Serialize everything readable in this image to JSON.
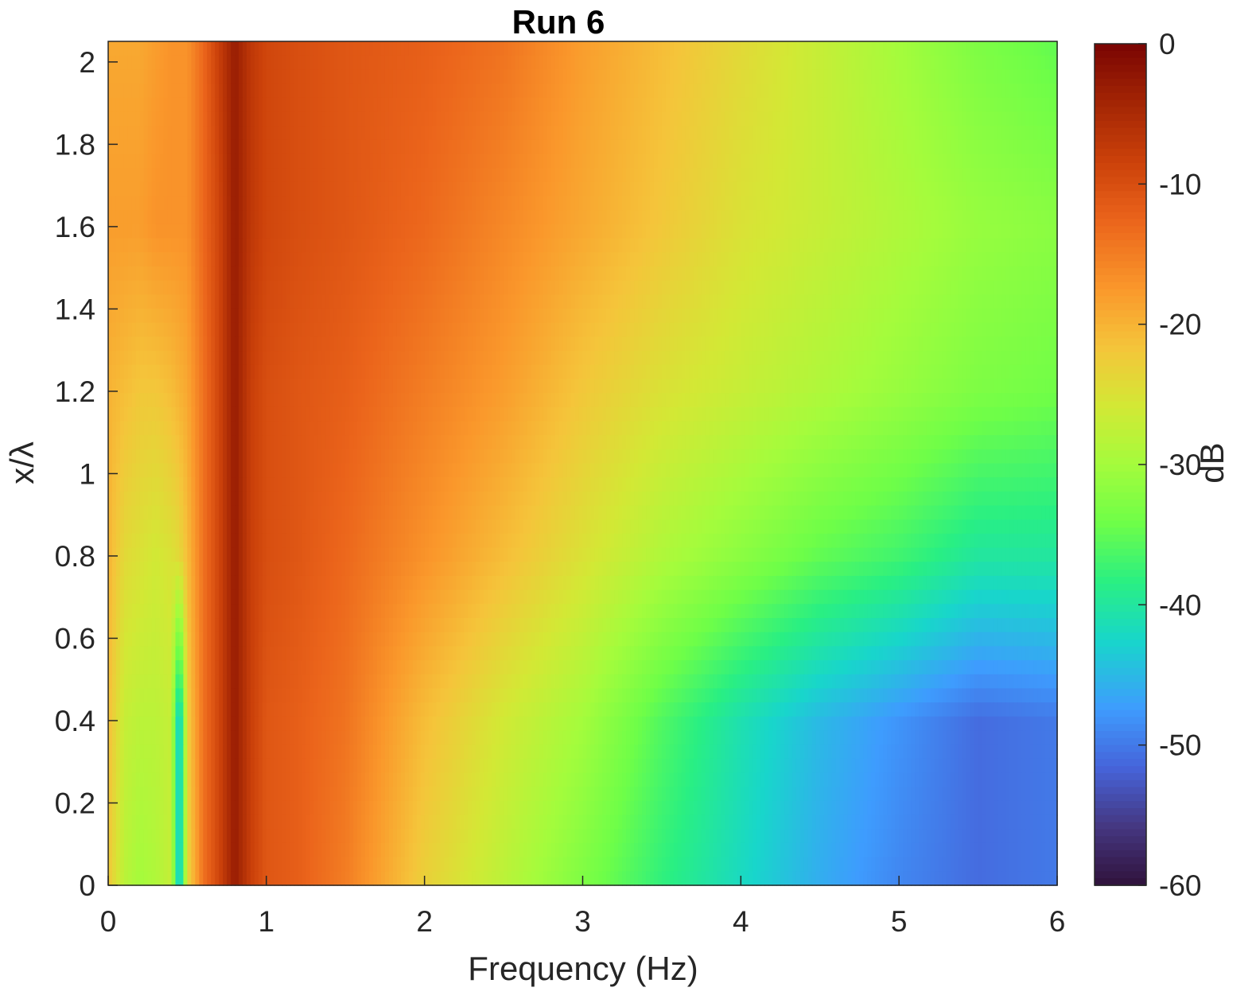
{
  "chart_data": {
    "type": "heatmap",
    "title": "Run 6",
    "xlabel": "Frequency (Hz)",
    "ylabel": "x/λ",
    "colorbar_label": "dB",
    "xlim": [
      0,
      6
    ],
    "ylim": [
      0,
      2.05
    ],
    "clim": [
      -60,
      0
    ],
    "x_ticks": [
      0,
      1,
      2,
      3,
      4,
      5,
      6
    ],
    "y_ticks": [
      0,
      0.2,
      0.4,
      0.6,
      0.8,
      1,
      1.2,
      1.4,
      1.6,
      1.8,
      2
    ],
    "y_tick_labels": [
      "0",
      "0.2",
      "0.4",
      "0.6",
      "0.8",
      "1",
      "1.2",
      "1.4",
      "1.6",
      "1.8",
      "2"
    ],
    "colorbar_ticks": [
      0,
      -10,
      -20,
      -30,
      -40,
      -50,
      -60
    ],
    "colormap": "turbo",
    "grid": false,
    "x": [
      0.0,
      0.1,
      0.2,
      0.3,
      0.4,
      0.45,
      0.5,
      0.6,
      0.7,
      0.8,
      0.9,
      1.0,
      1.2,
      1.5,
      2.0,
      2.5,
      3.0,
      3.5,
      4.0,
      4.5,
      5.0,
      5.5,
      6.0
    ],
    "y": [
      0.0,
      0.4,
      0.8,
      1.2,
      1.6,
      2.05
    ],
    "z": [
      [
        -22,
        -28,
        -30,
        -29,
        -27,
        -46,
        -24,
        -14,
        -9,
        -3,
        -8,
        -11,
        -12,
        -15,
        -23,
        -28,
        -33,
        -38,
        -42,
        -46,
        -49,
        -51,
        -50
      ],
      [
        -21,
        -27,
        -28,
        -28,
        -27,
        -46,
        -23,
        -14,
        -9,
        -3,
        -8,
        -11,
        -12,
        -14,
        -21,
        -26,
        -30,
        -36,
        -41,
        -45,
        -48,
        -51,
        -50
      ],
      [
        -20,
        -24,
        -25,
        -26,
        -25,
        -24,
        -21,
        -14,
        -9,
        -3,
        -8,
        -10,
        -11,
        -13,
        -17,
        -21,
        -25,
        -29,
        -32,
        -35,
        -37,
        -40,
        -40
      ],
      [
        -20,
        -21,
        -22,
        -22,
        -21,
        -20,
        -19,
        -14,
        -9,
        -3,
        -8,
        -10,
        -11,
        -12,
        -15,
        -18,
        -22,
        -25,
        -27,
        -29,
        -31,
        -33,
        -34
      ],
      [
        -18,
        -18,
        -18,
        -17,
        -17,
        -17,
        -17,
        -13,
        -9,
        -3,
        -7,
        -9,
        -10,
        -11,
        -13,
        -16,
        -19,
        -22,
        -25,
        -27,
        -29,
        -31,
        -32
      ],
      [
        -19,
        -19,
        -19,
        -18,
        -17,
        -17,
        -17,
        -13,
        -8,
        -3,
        -7,
        -9,
        -10,
        -11,
        -12,
        -14,
        -18,
        -21,
        -24,
        -27,
        -30,
        -33,
        -35
      ]
    ]
  }
}
